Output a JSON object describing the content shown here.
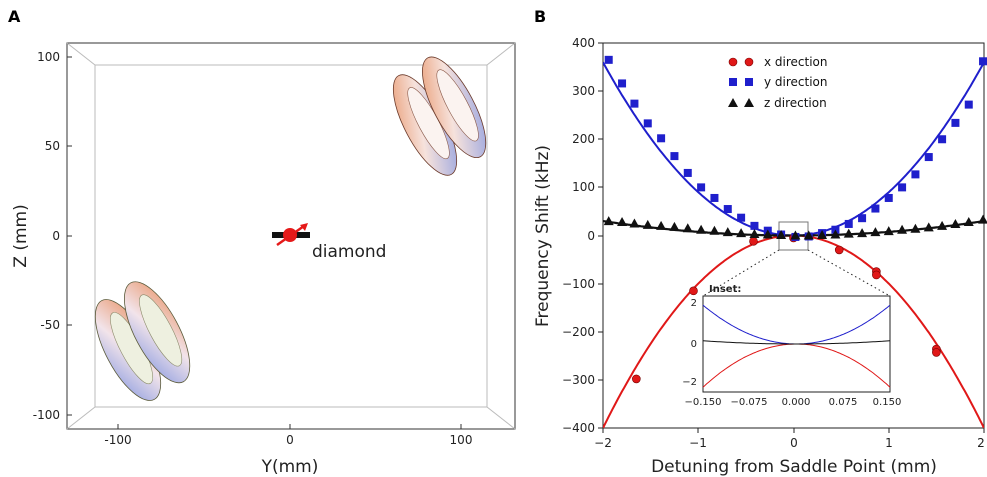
{
  "panel_a": {
    "label": "A",
    "xlabel": "Y(mm)",
    "ylabel": "Z (mm)",
    "xticks": [
      "-100",
      "0",
      "100"
    ],
    "yticks": [
      "100",
      "50",
      "0",
      "-50",
      "-100"
    ],
    "annotation": "diamond",
    "colors": {
      "coil_orange": "#e8956a",
      "coil_blue": "#8c9ce0",
      "diamond": "#e51919"
    }
  },
  "chart_data": {
    "type": "scatter",
    "panel_label": "B",
    "xlabel": "Detuning from Saddle Point (mm)",
    "ylabel": "Frequency Shift (kHz)",
    "xlim": [
      -2,
      2
    ],
    "ylim": [
      -400,
      400
    ],
    "xticks": [
      "−2",
      "−1",
      "0",
      "1",
      "2"
    ],
    "yticks": [
      "400",
      "300",
      "200",
      "100",
      "0",
      "−100",
      "−200",
      "−300",
      "−400"
    ],
    "legend_position": "top-center",
    "series": [
      {
        "name": "x direction",
        "marker": "circle",
        "color": "#e01818",
        "points": [
          [
            -1.65,
            -298
          ],
          [
            -1.05,
            -115
          ],
          [
            -0.42,
            -12
          ],
          [
            0.0,
            -5
          ],
          [
            0.48,
            -30
          ],
          [
            0.87,
            -75
          ],
          [
            0.87,
            -82
          ],
          [
            1.5,
            -236
          ],
          [
            1.5,
            -243
          ]
        ],
        "fit_curvature": -100
      },
      {
        "name": "y direction",
        "marker": "square",
        "color": "#1f1fcc",
        "points": [
          [
            -1.94,
            365
          ],
          [
            -1.8,
            316
          ],
          [
            -1.67,
            274
          ],
          [
            -1.53,
            233
          ],
          [
            -1.39,
            202
          ],
          [
            -1.25,
            165
          ],
          [
            -1.11,
            130
          ],
          [
            -0.97,
            100
          ],
          [
            -0.83,
            78
          ],
          [
            -0.69,
            55
          ],
          [
            -0.55,
            37
          ],
          [
            -0.41,
            20
          ],
          [
            -0.27,
            10
          ],
          [
            -0.13,
            2
          ],
          [
            0.02,
            -3
          ],
          [
            0.16,
            -2
          ],
          [
            0.3,
            5
          ],
          [
            0.44,
            12
          ],
          [
            0.58,
            24
          ],
          [
            0.72,
            36
          ],
          [
            0.86,
            56
          ],
          [
            1.0,
            78
          ],
          [
            1.14,
            100
          ],
          [
            1.28,
            127
          ],
          [
            1.42,
            163
          ],
          [
            1.56,
            200
          ],
          [
            1.7,
            234
          ],
          [
            1.84,
            272
          ],
          [
            1.99,
            362
          ]
        ],
        "fit_curvature": 90
      },
      {
        "name": "z direction",
        "marker": "triangle",
        "color": "#111111",
        "points": [
          [
            -1.94,
            30
          ],
          [
            -1.8,
            28
          ],
          [
            -1.67,
            25
          ],
          [
            -1.53,
            22
          ],
          [
            -1.39,
            20
          ],
          [
            -1.25,
            18
          ],
          [
            -1.11,
            15
          ],
          [
            -0.97,
            12
          ],
          [
            -0.83,
            10
          ],
          [
            -0.69,
            7
          ],
          [
            -0.55,
            5
          ],
          [
            -0.41,
            3
          ],
          [
            -0.27,
            2
          ],
          [
            -0.13,
            1
          ],
          [
            0.02,
            0
          ],
          [
            0.16,
            0
          ],
          [
            0.3,
            1
          ],
          [
            0.44,
            2
          ],
          [
            0.58,
            4
          ],
          [
            0.72,
            5
          ],
          [
            0.86,
            7
          ],
          [
            1.0,
            9
          ],
          [
            1.14,
            12
          ],
          [
            1.28,
            14
          ],
          [
            1.42,
            17
          ],
          [
            1.56,
            20
          ],
          [
            1.7,
            24
          ],
          [
            1.84,
            28
          ],
          [
            1.99,
            33
          ]
        ],
        "fit_curvature": 7.5
      }
    ],
    "inset": {
      "label": "Inset:",
      "xlim": [
        -0.15,
        0.15
      ],
      "ylim": [
        -2.5,
        2.5
      ],
      "xticks": [
        "−0.150",
        "−0.075",
        "0.000",
        "0.075",
        "0.150"
      ],
      "yticks": [
        "2",
        "0",
        "−2"
      ]
    }
  }
}
